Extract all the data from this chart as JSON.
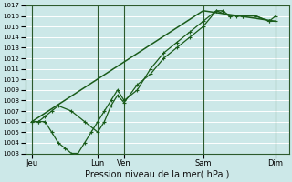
{
  "xlabel": "Pression niveau de la mer( hPa )",
  "bg_color": "#cce8e8",
  "grid_color": "#ffffff",
  "grid_minor_color": "#ddf0f0",
  "line_color": "#1a5c1a",
  "ylim": [
    1003,
    1017
  ],
  "xlim": [
    0,
    20
  ],
  "yticks": [
    1003,
    1004,
    1005,
    1006,
    1007,
    1008,
    1009,
    1010,
    1011,
    1012,
    1013,
    1014,
    1015,
    1016,
    1017
  ],
  "day_labels": [
    "Jeu",
    "Lun",
    "Ven",
    "Sam",
    "Dim"
  ],
  "day_positions": [
    0.5,
    5.5,
    7.5,
    13.5,
    19.0
  ],
  "vline_positions": [
    0.5,
    5.5,
    7.5,
    13.5,
    19.0
  ],
  "series1_x": [
    0.5,
    1.0,
    1.5,
    2.0,
    2.5,
    3.5,
    4.5,
    5.5,
    6.0,
    6.5,
    7.0,
    7.5,
    8.5,
    9.5,
    10.5,
    11.5,
    12.5,
    13.5,
    14.5,
    15.0,
    15.5,
    16.0,
    16.5,
    17.5,
    18.5,
    19.0
  ],
  "series1_y": [
    1006,
    1006,
    1006.5,
    1007,
    1007.5,
    1007,
    1006,
    1005,
    1006,
    1007.5,
    1008.5,
    1007.8,
    1009.5,
    1010.5,
    1012,
    1013,
    1014,
    1015,
    1016.5,
    1016.5,
    1016,
    1016,
    1016,
    1016,
    1015.5,
    1016
  ],
  "series2_x": [
    0.5,
    1.0,
    1.5,
    2.0,
    2.5,
    3.0,
    3.5,
    4.0,
    4.5,
    5.0,
    5.5,
    6.0,
    6.5,
    7.0,
    7.5,
    8.5,
    9.5,
    10.5,
    11.5,
    12.5,
    13.5,
    14.5,
    15.5,
    16.5,
    17.5,
    18.5,
    19.0
  ],
  "series2_y": [
    1006,
    1006,
    1006,
    1005,
    1004,
    1003.5,
    1003,
    1003,
    1004,
    1005,
    1006,
    1007,
    1008,
    1009,
    1008,
    1009,
    1011,
    1012.5,
    1013.5,
    1014.5,
    1015.5,
    1016.5,
    1016,
    1016,
    1016,
    1015.5,
    1015.5
  ],
  "series3_x": [
    0.5,
    13.5,
    19.0
  ],
  "series3_y": [
    1006,
    1016.5,
    1015.5
  ]
}
